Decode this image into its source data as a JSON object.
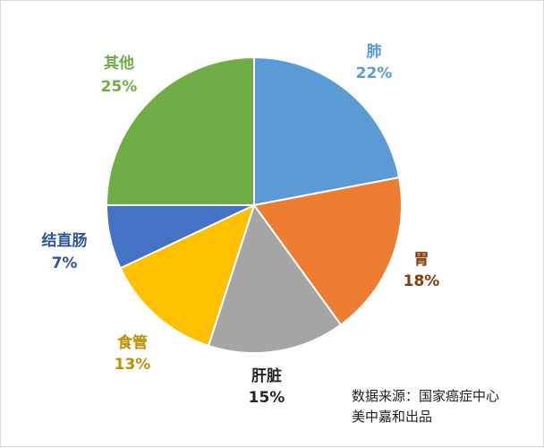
{
  "chart_data": {
    "type": "pie",
    "slices": [
      {
        "label": "肺",
        "value": 22,
        "value_label": "22%",
        "color": "#5B9BD5",
        "label_color": "#5B9BD5"
      },
      {
        "label": "胃",
        "value": 18,
        "value_label": "18%",
        "color": "#ED7D31",
        "label_color": "#843C0C"
      },
      {
        "label": "肝脏",
        "value": 15,
        "value_label": "15%",
        "color": "#A5A5A5",
        "label_color": "#262626"
      },
      {
        "label": "食管",
        "value": 13,
        "value_label": "13%",
        "color": "#FFC000",
        "label_color": "#BF9000"
      },
      {
        "label": "结直肠",
        "value": 7,
        "value_label": "7%",
        "color": "#4472C4",
        "label_color": "#2E5597"
      },
      {
        "label": "其他",
        "value": 25,
        "value_label": "25%",
        "color": "#70AD47",
        "label_color": "#70AD47"
      }
    ],
    "start_angle": "12 o'clock",
    "direction": "clockwise"
  },
  "source": {
    "line1": "数据来源：国家癌症中心",
    "line2": "美中嘉和出品"
  }
}
